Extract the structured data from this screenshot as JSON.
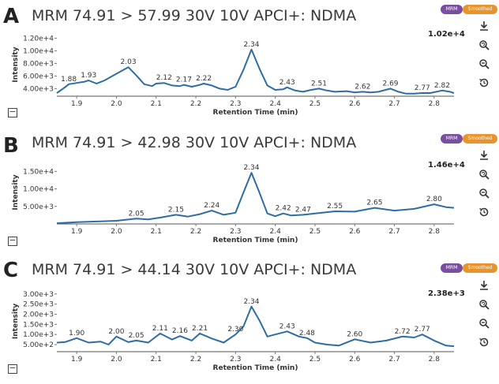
{
  "badges": {
    "mrm": "MRM",
    "smoothed": "Smoothed"
  },
  "icons": [
    "download-icon",
    "zoom-reset-icon",
    "zoom-out-icon",
    "history-icon"
  ],
  "colors": {
    "trace": "#2e6da4",
    "text": "#333333",
    "mrm_badge": "#7b4fa0",
    "smoothed_badge": "#e8932c"
  },
  "chart_data": [
    {
      "type": "line",
      "panel": "A",
      "title": "MRM 74.91 > 57.99 30V 10V APCI+: NDMA",
      "max_intensity": "1.02e+4",
      "xlabel": "Retention Time (min)",
      "ylabel": "Intensity",
      "xlim": [
        1.85,
        2.85
      ],
      "ylim": [
        2800,
        12800
      ],
      "xticks": [
        1.9,
        2.0,
        2.1,
        2.2,
        2.3,
        2.4,
        2.5,
        2.6,
        2.7,
        2.8
      ],
      "xtick_labels": [
        "1.9",
        "2.0",
        "2.1",
        "2.2",
        "2.3",
        "2.4",
        "2.5",
        "2.6",
        "2.7",
        "2.8"
      ],
      "yticks": [
        4000,
        6000,
        8000,
        10000,
        12000
      ],
      "ytick_labels": [
        "4.00e+3",
        "6.00e+3",
        "8.00e+3",
        "1.00e+4",
        "1.20e+4"
      ],
      "peak_labels": [
        {
          "x": 1.88,
          "y": 4700,
          "text": "1.88"
        },
        {
          "x": 1.93,
          "y": 5300,
          "text": "1.93"
        },
        {
          "x": 2.03,
          "y": 7400,
          "text": "2.03"
        },
        {
          "x": 2.12,
          "y": 4900,
          "text": "2.12"
        },
        {
          "x": 2.17,
          "y": 4600,
          "text": "2.17"
        },
        {
          "x": 2.22,
          "y": 4800,
          "text": "2.22"
        },
        {
          "x": 2.34,
          "y": 10200,
          "text": "2.34"
        },
        {
          "x": 2.43,
          "y": 4200,
          "text": "2.43"
        },
        {
          "x": 2.51,
          "y": 4000,
          "text": "2.51"
        },
        {
          "x": 2.62,
          "y": 3500,
          "text": "2.62"
        },
        {
          "x": 2.69,
          "y": 4000,
          "text": "2.69"
        },
        {
          "x": 2.77,
          "y": 3300,
          "text": "2.77"
        },
        {
          "x": 2.82,
          "y": 3700,
          "text": "2.82"
        }
      ],
      "x": [
        1.85,
        1.87,
        1.88,
        1.9,
        1.92,
        1.93,
        1.95,
        1.97,
        1.99,
        2.01,
        2.03,
        2.05,
        2.07,
        2.09,
        2.1,
        2.12,
        2.14,
        2.16,
        2.17,
        2.19,
        2.21,
        2.22,
        2.24,
        2.26,
        2.28,
        2.3,
        2.32,
        2.34,
        2.36,
        2.38,
        2.4,
        2.42,
        2.43,
        2.45,
        2.47,
        2.49,
        2.51,
        2.53,
        2.55,
        2.58,
        2.6,
        2.62,
        2.64,
        2.66,
        2.69,
        2.71,
        2.73,
        2.75,
        2.77,
        2.79,
        2.82,
        2.84,
        2.85
      ],
      "y": [
        3300,
        4200,
        4700,
        4900,
        5100,
        5300,
        4800,
        5300,
        6000,
        6700,
        7400,
        6100,
        4700,
        4400,
        4800,
        4900,
        4500,
        4400,
        4600,
        4300,
        4600,
        4800,
        4500,
        4000,
        3800,
        4300,
        7000,
        10200,
        7200,
        4500,
        3800,
        3900,
        4200,
        3700,
        3500,
        3800,
        4000,
        3700,
        3500,
        3600,
        3400,
        3500,
        3400,
        3500,
        4000,
        3500,
        3200,
        3200,
        3300,
        3300,
        3700,
        3500,
        3300
      ]
    },
    {
      "type": "line",
      "panel": "B",
      "title": "MRM 74.91 > 42.98 30V 10V APCI+: NDMA",
      "max_intensity": "1.46e+4",
      "xlabel": "Retention Time (min)",
      "ylabel": "Intensity",
      "xlim": [
        1.85,
        2.85
      ],
      "ylim": [
        0,
        18000
      ],
      "xticks": [
        1.9,
        2.0,
        2.1,
        2.2,
        2.3,
        2.4,
        2.5,
        2.6,
        2.7,
        2.8
      ],
      "xtick_labels": [
        "1.9",
        "2.0",
        "2.1",
        "2.2",
        "2.3",
        "2.4",
        "2.5",
        "2.6",
        "2.7",
        "2.8"
      ],
      "yticks": [
        5000,
        10000,
        15000
      ],
      "ytick_labels": [
        "5.00e+3",
        "1.00e+4",
        "1.50e+4"
      ],
      "peak_labels": [
        {
          "x": 2.05,
          "y": 1500,
          "text": "2.05"
        },
        {
          "x": 2.15,
          "y": 2600,
          "text": "2.15"
        },
        {
          "x": 2.24,
          "y": 3800,
          "text": "2.24"
        },
        {
          "x": 2.34,
          "y": 14600,
          "text": "2.34"
        },
        {
          "x": 2.42,
          "y": 3000,
          "text": "2.42"
        },
        {
          "x": 2.47,
          "y": 2600,
          "text": "2.47"
        },
        {
          "x": 2.55,
          "y": 3600,
          "text": "2.55"
        },
        {
          "x": 2.65,
          "y": 4600,
          "text": "2.65"
        },
        {
          "x": 2.8,
          "y": 5600,
          "text": "2.80"
        }
      ],
      "x": [
        1.85,
        1.9,
        1.95,
        2.0,
        2.05,
        2.08,
        2.11,
        2.15,
        2.18,
        2.21,
        2.24,
        2.27,
        2.3,
        2.32,
        2.34,
        2.36,
        2.38,
        2.4,
        2.42,
        2.44,
        2.47,
        2.5,
        2.55,
        2.6,
        2.65,
        2.7,
        2.75,
        2.8,
        2.83,
        2.85
      ],
      "y": [
        200,
        500,
        700,
        900,
        1500,
        1300,
        1800,
        2600,
        2100,
        2800,
        3800,
        2600,
        3200,
        9000,
        14600,
        9000,
        3000,
        2200,
        3000,
        2400,
        2600,
        3000,
        3600,
        3500,
        4600,
        3800,
        4300,
        5600,
        4800,
        4600
      ]
    },
    {
      "type": "line",
      "panel": "C",
      "title": "MRM 74.91 > 44.14 30V 10V APCI+: NDMA",
      "max_intensity": "2.38e+3",
      "xlabel": "Retention Time (min)",
      "ylabel": "Intensity",
      "xlim": [
        1.85,
        2.85
      ],
      "ylim": [
        150,
        3150
      ],
      "xticks": [
        1.9,
        2.0,
        2.1,
        2.2,
        2.3,
        2.4,
        2.5,
        2.6,
        2.7,
        2.8
      ],
      "xtick_labels": [
        "1.9",
        "2.0",
        "2.1",
        "2.2",
        "2.3",
        "2.4",
        "2.5",
        "2.6",
        "2.7",
        "2.8"
      ],
      "yticks": [
        500,
        1000,
        1500,
        2000,
        2500,
        3000
      ],
      "ytick_labels": [
        "5.00e+2",
        "1.00e+3",
        "1.50e+3",
        "2.00e+3",
        "2.50e+3",
        "3.00e+3"
      ],
      "peak_labels": [
        {
          "x": 1.9,
          "y": 820,
          "text": "1.90"
        },
        {
          "x": 2.0,
          "y": 900,
          "text": "2.00"
        },
        {
          "x": 2.05,
          "y": 700,
          "text": "2.05"
        },
        {
          "x": 2.11,
          "y": 1050,
          "text": "2.11"
        },
        {
          "x": 2.16,
          "y": 920,
          "text": "2.16"
        },
        {
          "x": 2.21,
          "y": 1050,
          "text": "2.21"
        },
        {
          "x": 2.3,
          "y": 1000,
          "text": "2.30"
        },
        {
          "x": 2.34,
          "y": 2380,
          "text": "2.34"
        },
        {
          "x": 2.43,
          "y": 1150,
          "text": "2.43"
        },
        {
          "x": 2.48,
          "y": 820,
          "text": "2.48"
        },
        {
          "x": 2.6,
          "y": 760,
          "text": "2.60"
        },
        {
          "x": 2.72,
          "y": 900,
          "text": "2.72"
        },
        {
          "x": 2.77,
          "y": 1000,
          "text": "2.77"
        }
      ],
      "x": [
        1.85,
        1.87,
        1.9,
        1.93,
        1.96,
        1.98,
        2.0,
        2.03,
        2.05,
        2.08,
        2.11,
        2.14,
        2.16,
        2.19,
        2.21,
        2.24,
        2.27,
        2.3,
        2.32,
        2.34,
        2.36,
        2.38,
        2.4,
        2.43,
        2.46,
        2.48,
        2.5,
        2.53,
        2.56,
        2.6,
        2.64,
        2.68,
        2.72,
        2.75,
        2.77,
        2.8,
        2.83,
        2.85
      ],
      "y": [
        600,
        620,
        820,
        600,
        650,
        500,
        900,
        620,
        700,
        600,
        1050,
        750,
        920,
        700,
        1050,
        800,
        600,
        1000,
        1400,
        2380,
        1700,
        900,
        1000,
        1150,
        900,
        820,
        600,
        500,
        450,
        760,
        600,
        700,
        900,
        850,
        1000,
        700,
        450,
        420
      ]
    }
  ]
}
